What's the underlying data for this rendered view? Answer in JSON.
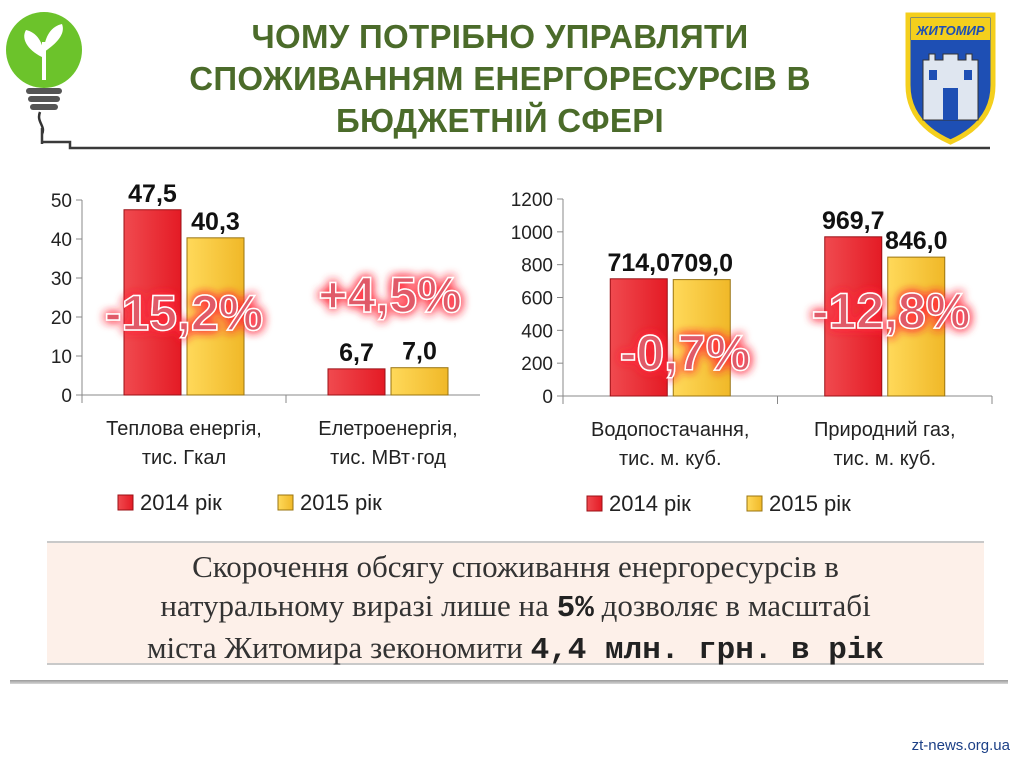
{
  "header": {
    "title_lines": [
      "ЧОМУ ПОТРІБНО УПРАВЛЯТИ",
      "СПОЖИВАННЯМ ЕНЕРГОРЕСУРСІВ В",
      "БЮДЖЕТНІЙ СФЕРІ"
    ],
    "coat_of_arms_text": "ЖИТОМИР"
  },
  "colors": {
    "series_2014": "#e41b25",
    "series_2015": "#f0b828",
    "title": "#4b6b2a",
    "percent_text": "#e05a68",
    "percent_glow": "#ff2a3a",
    "bulb_green": "#6cc32b"
  },
  "chart_data": [
    {
      "type": "bar",
      "categories": [
        [
          "Теплова енергія,",
          "тис. Гкал"
        ],
        [
          "Елетроенергія,",
          "тис. МВт·год"
        ]
      ],
      "series": [
        {
          "name": "2014 рік",
          "values": [
            47.5,
            6.7
          ],
          "labels": [
            "47,5",
            "6,7"
          ]
        },
        {
          "name": "2015 рік",
          "values": [
            40.3,
            7.0
          ],
          "labels": [
            "40,3",
            "7,0"
          ]
        }
      ],
      "ylim": [
        0,
        50
      ],
      "yticks": [
        "0",
        "10",
        "20",
        "30",
        "40",
        "50"
      ],
      "change_labels": [
        "-15,2%",
        "+4,5%"
      ],
      "legend": [
        "2014 рік",
        "2015 рік"
      ]
    },
    {
      "type": "bar",
      "categories": [
        [
          "Водопостачання,",
          "тис. м. куб."
        ],
        [
          "Природний газ,",
          "тис. м. куб."
        ]
      ],
      "series": [
        {
          "name": "2014 рік",
          "values": [
            714.0,
            969.7
          ],
          "labels": [
            "714,0",
            "969,7"
          ]
        },
        {
          "name": "2015 рік",
          "values": [
            709.0,
            846.0
          ],
          "labels": [
            "709,0",
            "846,0"
          ]
        }
      ],
      "ylim": [
        0,
        1200
      ],
      "yticks": [
        "0",
        "200",
        "400",
        "600",
        "800",
        "1000",
        "1200"
      ],
      "change_labels": [
        "-0,7%",
        "-12,8%"
      ],
      "legend": [
        "2014 рік",
        "2015 рік"
      ]
    }
  ],
  "note": {
    "line1": "Скорочення обсягу споживання енергоресурсів в",
    "line2_pre": "натуральному виразі лише на ",
    "line2_bold": "5%",
    "line2_post": " дозволяє в масштабі",
    "line3_pre": "міста Житомира зекономити ",
    "line3_bold": "4,4 млн. грн. в рік"
  },
  "source": "zt-news.org.ua"
}
